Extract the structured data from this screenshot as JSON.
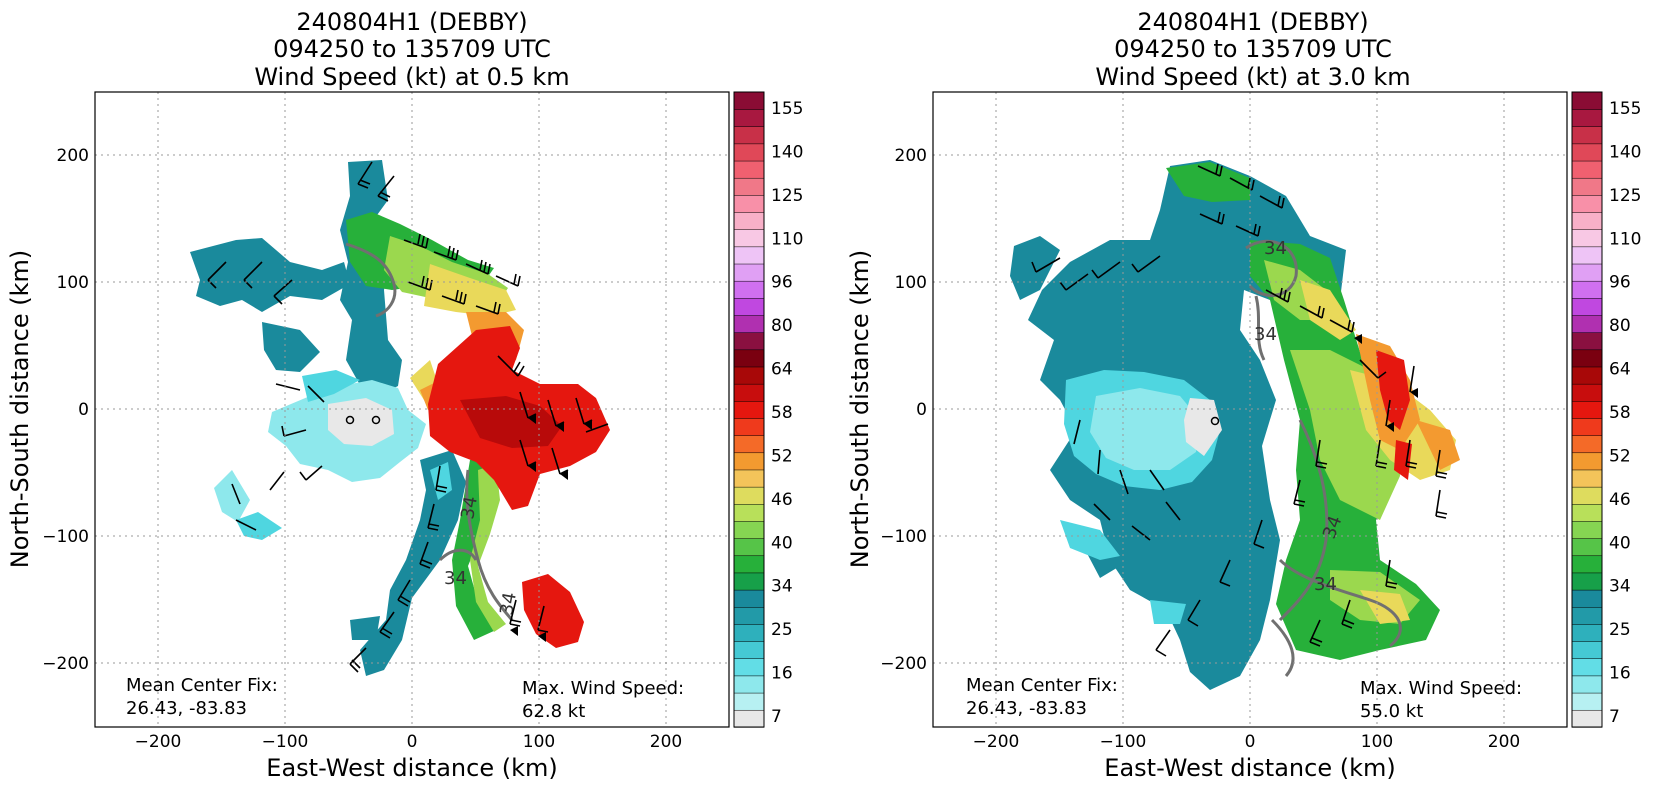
{
  "panels": [
    {
      "title_lines": [
        "240804H1 (DEBBY)",
        "094250 to 135709 UTC",
        "Wind Speed (kt) at 0.5 km"
      ],
      "xlabel": "East-West distance (km)",
      "ylabel": "North-South distance (km)",
      "xticks": [
        "−200",
        "−100",
        "0",
        "100",
        "200"
      ],
      "yticks": [
        "200",
        "100",
        "0",
        "−100",
        "−200"
      ],
      "center_fix_label": "Mean Center Fix:",
      "center_fix_value": "26.43, -83.83",
      "max_wind_label": "Max. Wind Speed:",
      "max_wind_value": "62.8 kt",
      "contour_label": "34",
      "colorbar_labels": [
        "155",
        "140",
        "125",
        "110",
        "96",
        "80",
        "64",
        "58",
        "52",
        "46",
        "40",
        "34",
        "25",
        "16",
        "7"
      ]
    },
    {
      "title_lines": [
        "240804H1 (DEBBY)",
        "094250 to 135709 UTC",
        "Wind Speed (kt) at 3.0 km"
      ],
      "xlabel": "East-West distance (km)",
      "ylabel": "North-South distance (km)",
      "xticks": [
        "−200",
        "−100",
        "0",
        "100",
        "200"
      ],
      "yticks": [
        "200",
        "100",
        "0",
        "−100",
        "−200"
      ],
      "center_fix_label": "Mean Center Fix:",
      "center_fix_value": "26.43, -83.83",
      "max_wind_label": "Max. Wind Speed:",
      "max_wind_value": "55.0 kt",
      "contour_label": "34",
      "colorbar_labels": [
        "155",
        "140",
        "125",
        "110",
        "96",
        "80",
        "64",
        "58",
        "52",
        "46",
        "40",
        "34",
        "25",
        "16",
        "7"
      ]
    }
  ],
  "colors": {
    "calm": "#e8e8e8",
    "light_cyan": "#8ee8ec",
    "cyan": "#4fd6e0",
    "teal": "#1a8a9c",
    "green": "#27b03a",
    "light_green": "#9bd84e",
    "yellow": "#e9d95a",
    "orange": "#f39a30",
    "red": "#e5170f",
    "dark_red": "#7a0010",
    "contour": "#707070"
  }
}
